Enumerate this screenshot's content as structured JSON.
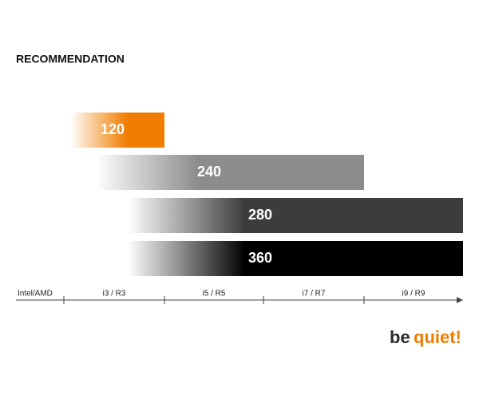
{
  "title": "RECOMMENDATION",
  "bars": [
    {
      "label": "120"
    },
    {
      "label": "240"
    },
    {
      "label": "280"
    },
    {
      "label": "360"
    }
  ],
  "axis": {
    "name": "Intel/AMD",
    "tiers": [
      "i3 / R3",
      "i5 / R5",
      "i7 / R7",
      "i9 / R9"
    ]
  },
  "logo": [
    "be",
    "quiet!"
  ]
}
